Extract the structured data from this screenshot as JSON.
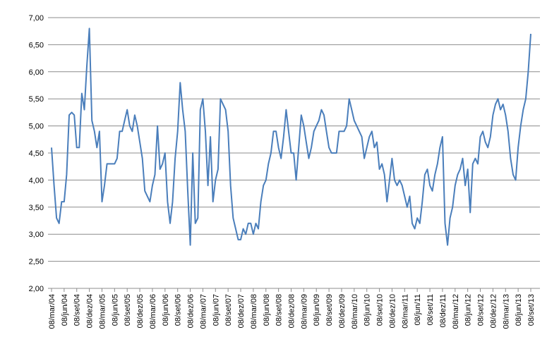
{
  "chart_data": {
    "type": "line",
    "categories": [
      "08/mar/04",
      null,
      null,
      null,
      null,
      "08/jun/04",
      null,
      null,
      null,
      null,
      "08/set/04",
      null,
      null,
      null,
      null,
      "08/dez/04",
      null,
      null,
      null,
      null,
      "08/mar/05",
      null,
      null,
      null,
      null,
      "08/jun/05",
      null,
      null,
      null,
      null,
      "08/set/05",
      null,
      null,
      null,
      null,
      "08/dez/05",
      null,
      null,
      null,
      null,
      "08/mar/06",
      null,
      null,
      null,
      null,
      "08/jun/06",
      null,
      null,
      null,
      null,
      "08/set/06",
      null,
      null,
      null,
      null,
      "08/dez/06",
      null,
      null,
      null,
      null,
      "08/mar/07",
      null,
      null,
      null,
      null,
      "08/jun/07",
      null,
      null,
      null,
      null,
      "08/set/07",
      null,
      null,
      null,
      null,
      "08/dez/07",
      null,
      null,
      null,
      null,
      "08/mar/08",
      null,
      null,
      null,
      null,
      "08/jun/08",
      null,
      null,
      null,
      null,
      "08/set/08",
      null,
      null,
      null,
      null,
      "08/dez/08",
      null,
      null,
      null,
      null,
      "08/mar/09",
      null,
      null,
      null,
      null,
      "08/jun/09",
      null,
      null,
      null,
      null,
      "08/set/09",
      null,
      null,
      null,
      null,
      "08/dez/09",
      null,
      null,
      null,
      null,
      "08/mar/10",
      null,
      null,
      null,
      null,
      "08/jun/10",
      null,
      null,
      null,
      null,
      "08/set/10",
      null,
      null,
      null,
      null,
      "08/dez/10",
      null,
      null,
      null,
      null,
      "08/mar/11",
      null,
      null,
      null,
      null,
      "08/jun/11",
      null,
      null,
      null,
      null,
      "08/set/11",
      null,
      null,
      null,
      null,
      "08/dez/11",
      null,
      null,
      null,
      null,
      "08/mar/12",
      null,
      null,
      null,
      null,
      "08/jun/12",
      null,
      null,
      null,
      null,
      "08/set/12",
      null,
      null,
      null,
      null,
      "08/dez/12",
      null,
      null,
      null,
      null,
      "08/mar/13",
      null,
      null,
      null,
      null,
      "08/jun/13",
      null,
      null,
      null,
      null,
      "08/set/13"
    ],
    "series": [
      {
        "color": "#4a7ebb",
        "values": [
          4.6,
          3.9,
          3.3,
          3.2,
          3.6,
          3.6,
          4.1,
          5.2,
          5.25,
          5.2,
          4.6,
          4.6,
          5.6,
          5.3,
          6.1,
          6.8,
          5.1,
          4.9,
          4.6,
          4.9,
          3.6,
          3.9,
          4.3,
          4.3,
          4.3,
          4.3,
          4.4,
          4.9,
          4.9,
          5.1,
          5.3,
          5.0,
          4.9,
          5.2,
          5.0,
          4.7,
          4.4,
          3.8,
          3.7,
          3.6,
          3.9,
          4.1,
          5.0,
          4.2,
          4.3,
          4.5,
          3.6,
          3.2,
          3.6,
          4.4,
          4.9,
          5.8,
          5.3,
          4.9,
          3.8,
          2.8,
          4.5,
          3.2,
          3.3,
          5.3,
          5.5,
          4.9,
          3.9,
          4.8,
          3.6,
          4.0,
          4.2,
          5.5,
          5.4,
          5.3,
          4.9,
          3.9,
          3.3,
          3.1,
          2.9,
          2.9,
          3.1,
          3.0,
          3.2,
          3.2,
          3.0,
          3.2,
          3.1,
          3.6,
          3.9,
          4.0,
          4.3,
          4.5,
          4.9,
          4.9,
          4.6,
          4.4,
          4.8,
          5.3,
          4.9,
          4.5,
          4.5,
          4.0,
          4.6,
          5.2,
          5.0,
          4.7,
          4.4,
          4.6,
          4.9,
          5.0,
          5.1,
          5.3,
          5.2,
          4.9,
          4.6,
          4.5,
          4.5,
          4.5,
          4.9,
          4.9,
          4.9,
          5.0,
          5.5,
          5.3,
          5.1,
          5.0,
          4.9,
          4.8,
          4.4,
          4.6,
          4.8,
          4.9,
          4.6,
          4.7,
          4.2,
          4.3,
          4.1,
          3.6,
          4.0,
          4.4,
          4.0,
          3.9,
          4.0,
          3.9,
          3.7,
          3.5,
          3.7,
          3.2,
          3.1,
          3.3,
          3.2,
          3.6,
          4.1,
          4.2,
          3.9,
          3.8,
          4.1,
          4.3,
          4.6,
          4.8,
          3.2,
          2.8,
          3.3,
          3.5,
          3.9,
          4.1,
          4.2,
          4.4,
          3.9,
          4.2,
          3.4,
          4.3,
          4.4,
          4.3,
          4.8,
          4.9,
          4.7,
          4.6,
          4.8,
          5.2,
          5.4,
          5.5,
          5.3,
          5.4,
          5.2,
          4.9,
          4.4,
          4.1,
          4.0,
          4.6,
          5.0,
          5.3,
          5.5,
          6.0,
          6.7
        ]
      }
    ],
    "ylim": [
      2,
      7
    ],
    "yticks": [
      {
        "value": 2,
        "label": "2,00"
      },
      {
        "value": 2.5,
        "label": "2,50"
      },
      {
        "value": 3,
        "label": "3,00"
      },
      {
        "value": 3.5,
        "label": "3,50"
      },
      {
        "value": 4,
        "label": "4,00"
      },
      {
        "value": 4.5,
        "label": "4,50"
      },
      {
        "value": 5,
        "label": "5,00"
      },
      {
        "value": 5.5,
        "label": "5,50"
      },
      {
        "value": 6,
        "label": "6,00"
      },
      {
        "value": 6.5,
        "label": "6,50"
      },
      {
        "value": 7,
        "label": "7,00"
      }
    ],
    "grid": true
  }
}
